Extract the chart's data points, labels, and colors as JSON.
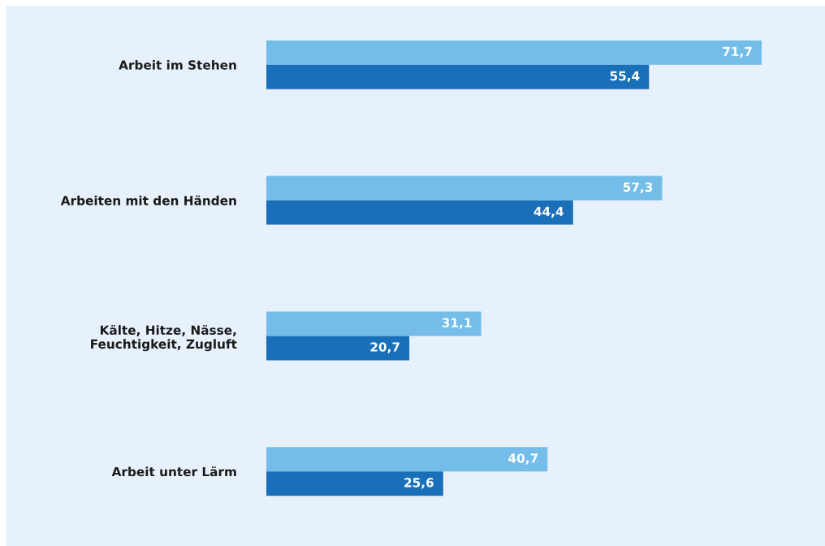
{
  "chart_data": {
    "type": "bar",
    "orientation": "horizontal",
    "categories": [
      "Arbeit im Stehen",
      "Arbeiten mit den Händen",
      "Kälte, Hitze, Nässe,\nFeuchtigkeit, Zugluft",
      "Arbeit unter Lärm"
    ],
    "series": [
      {
        "color": "#74bde9",
        "values": [
          71.7,
          57.3,
          31.1,
          40.7
        ],
        "value_labels": [
          "71,7",
          "57,3",
          "31,1",
          "40,7"
        ]
      },
      {
        "color": "#1a70b8",
        "values": [
          55.4,
          44.4,
          20.7,
          25.6
        ],
        "value_labels": [
          "55,4",
          "44,4",
          "20,7",
          "25,6"
        ]
      }
    ],
    "tick_labels": "y"
  }
}
